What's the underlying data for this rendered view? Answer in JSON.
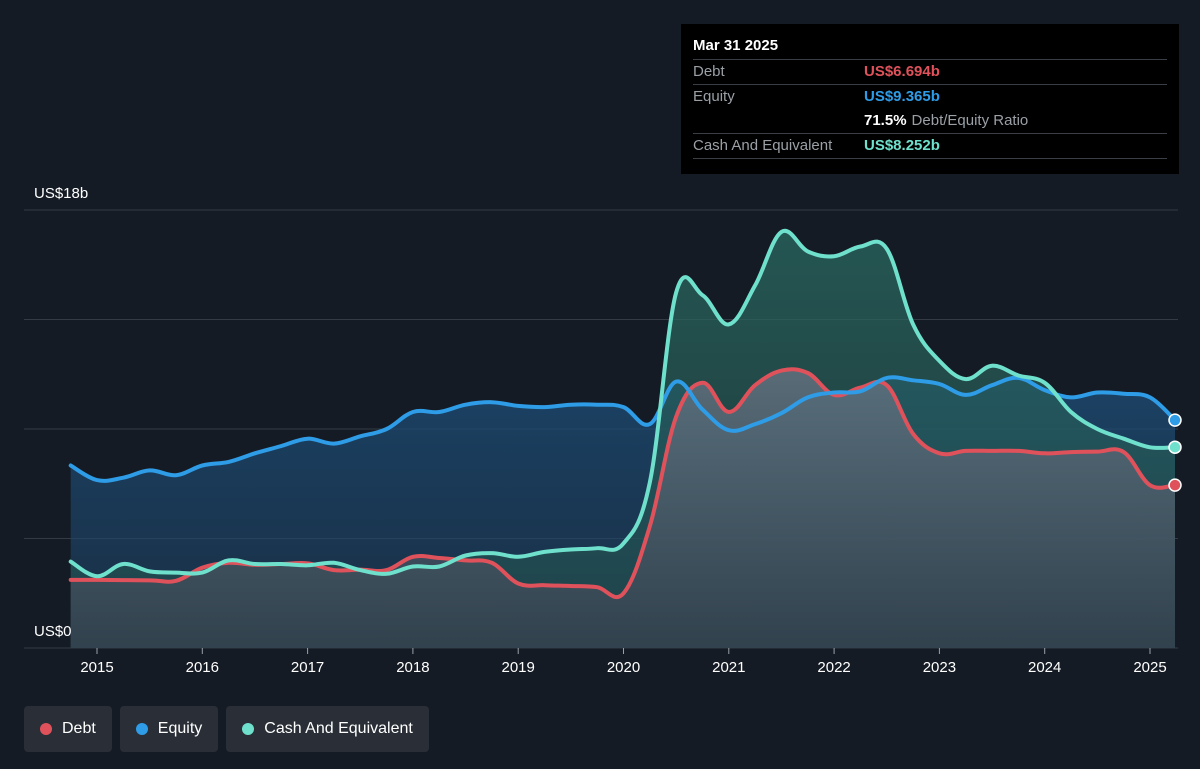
{
  "tooltip": {
    "date": "Mar 31 2025",
    "debt_label": "Debt",
    "debt_value": "US$6.694b",
    "equity_label": "Equity",
    "equity_value": "US$9.365b",
    "ratio_value": "71.5%",
    "ratio_desc": "Debt/Equity Ratio",
    "cash_label": "Cash And Equivalent",
    "cash_value": "US$8.252b"
  },
  "legend": {
    "debt": "Debt",
    "equity": "Equity",
    "cash": "Cash And Equivalent"
  },
  "colors": {
    "debt": "#e0525b",
    "equity": "#2e9ce6",
    "cash": "#6fe0cc",
    "background": "#151b24",
    "grid": "#343b45"
  },
  "chart_data": {
    "type": "area",
    "y_top_label": "US$18b",
    "y_bottom_label": "US$0",
    "ylim": [
      0,
      18
    ],
    "xlim": [
      2014.75,
      2025.25
    ],
    "x_ticks": [
      "2015",
      "2016",
      "2017",
      "2018",
      "2019",
      "2020",
      "2021",
      "2022",
      "2023",
      "2024",
      "2025"
    ],
    "grid": true,
    "series": [
      {
        "name": "Debt",
        "key": "debt",
        "x": [
          2014.75,
          2015.0,
          2015.5,
          2015.75,
          2016.0,
          2016.25,
          2016.5,
          2016.75,
          2017.0,
          2017.25,
          2017.5,
          2017.75,
          2018.0,
          2018.25,
          2018.5,
          2018.75,
          2019.0,
          2019.25,
          2019.5,
          2019.75,
          2020.0,
          2020.25,
          2020.5,
          2020.75,
          2021.0,
          2021.25,
          2021.5,
          2021.75,
          2022.0,
          2022.25,
          2022.5,
          2022.75,
          2023.0,
          2023.25,
          2023.5,
          2023.75,
          2024.0,
          2024.25,
          2024.5,
          2024.75,
          2025.0,
          2025.25
        ],
        "values": [
          2.8,
          2.8,
          2.78,
          2.76,
          3.3,
          3.5,
          3.42,
          3.45,
          3.48,
          3.2,
          3.22,
          3.2,
          3.75,
          3.7,
          3.6,
          3.5,
          2.65,
          2.58,
          2.55,
          2.5,
          2.25,
          5.0,
          9.5,
          10.9,
          9.7,
          10.8,
          11.4,
          11.3,
          10.4,
          10.7,
          10.8,
          8.8,
          8.0,
          8.1,
          8.1,
          8.1,
          8.0,
          8.05,
          8.07,
          8.05,
          6.69,
          6.694
        ]
      },
      {
        "name": "Equity",
        "key": "equity",
        "x": [
          2014.75,
          2015.0,
          2015.25,
          2015.5,
          2015.75,
          2016.0,
          2016.25,
          2016.5,
          2016.75,
          2017.0,
          2017.25,
          2017.5,
          2017.75,
          2018.0,
          2018.25,
          2018.5,
          2018.75,
          2019.0,
          2019.25,
          2019.5,
          2019.75,
          2020.0,
          2020.25,
          2020.5,
          2020.75,
          2021.0,
          2021.25,
          2021.5,
          2021.75,
          2022.0,
          2022.25,
          2022.5,
          2022.75,
          2023.0,
          2023.25,
          2023.5,
          2023.75,
          2024.0,
          2024.25,
          2024.5,
          2024.75,
          2025.0,
          2025.25
        ],
        "values": [
          7.5,
          6.9,
          7.0,
          7.3,
          7.1,
          7.5,
          7.65,
          8.0,
          8.3,
          8.6,
          8.4,
          8.7,
          9.0,
          9.7,
          9.7,
          10.0,
          10.1,
          9.95,
          9.9,
          10.0,
          10.0,
          9.9,
          9.2,
          10.95,
          9.8,
          8.95,
          9.2,
          9.65,
          10.3,
          10.5,
          10.55,
          11.1,
          11.0,
          10.85,
          10.4,
          10.8,
          11.1,
          10.6,
          10.3,
          10.5,
          10.45,
          10.3,
          9.365
        ]
      },
      {
        "name": "Cash And Equivalent",
        "key": "cash",
        "x": [
          2014.75,
          2015.0,
          2015.25,
          2015.5,
          2015.75,
          2016.0,
          2016.25,
          2016.5,
          2016.75,
          2017.0,
          2017.25,
          2017.5,
          2017.75,
          2018.0,
          2018.25,
          2018.5,
          2018.75,
          2019.0,
          2019.25,
          2019.5,
          2019.75,
          2020.0,
          2020.25,
          2020.5,
          2020.75,
          2021.0,
          2021.25,
          2021.5,
          2021.75,
          2022.0,
          2022.25,
          2022.5,
          2022.75,
          2023.0,
          2023.25,
          2023.5,
          2023.75,
          2024.0,
          2024.25,
          2024.5,
          2024.75,
          2025.0,
          2025.25
        ],
        "values": [
          3.55,
          2.95,
          3.45,
          3.15,
          3.1,
          3.1,
          3.6,
          3.45,
          3.45,
          3.4,
          3.5,
          3.2,
          3.05,
          3.35,
          3.35,
          3.8,
          3.9,
          3.75,
          3.95,
          4.05,
          4.1,
          4.3,
          6.8,
          14.6,
          14.5,
          13.3,
          14.9,
          17.1,
          16.3,
          16.1,
          16.5,
          16.4,
          13.3,
          11.8,
          11.05,
          11.6,
          11.2,
          10.9,
          9.7,
          9.0,
          8.6,
          8.25,
          8.252
        ]
      }
    ]
  }
}
